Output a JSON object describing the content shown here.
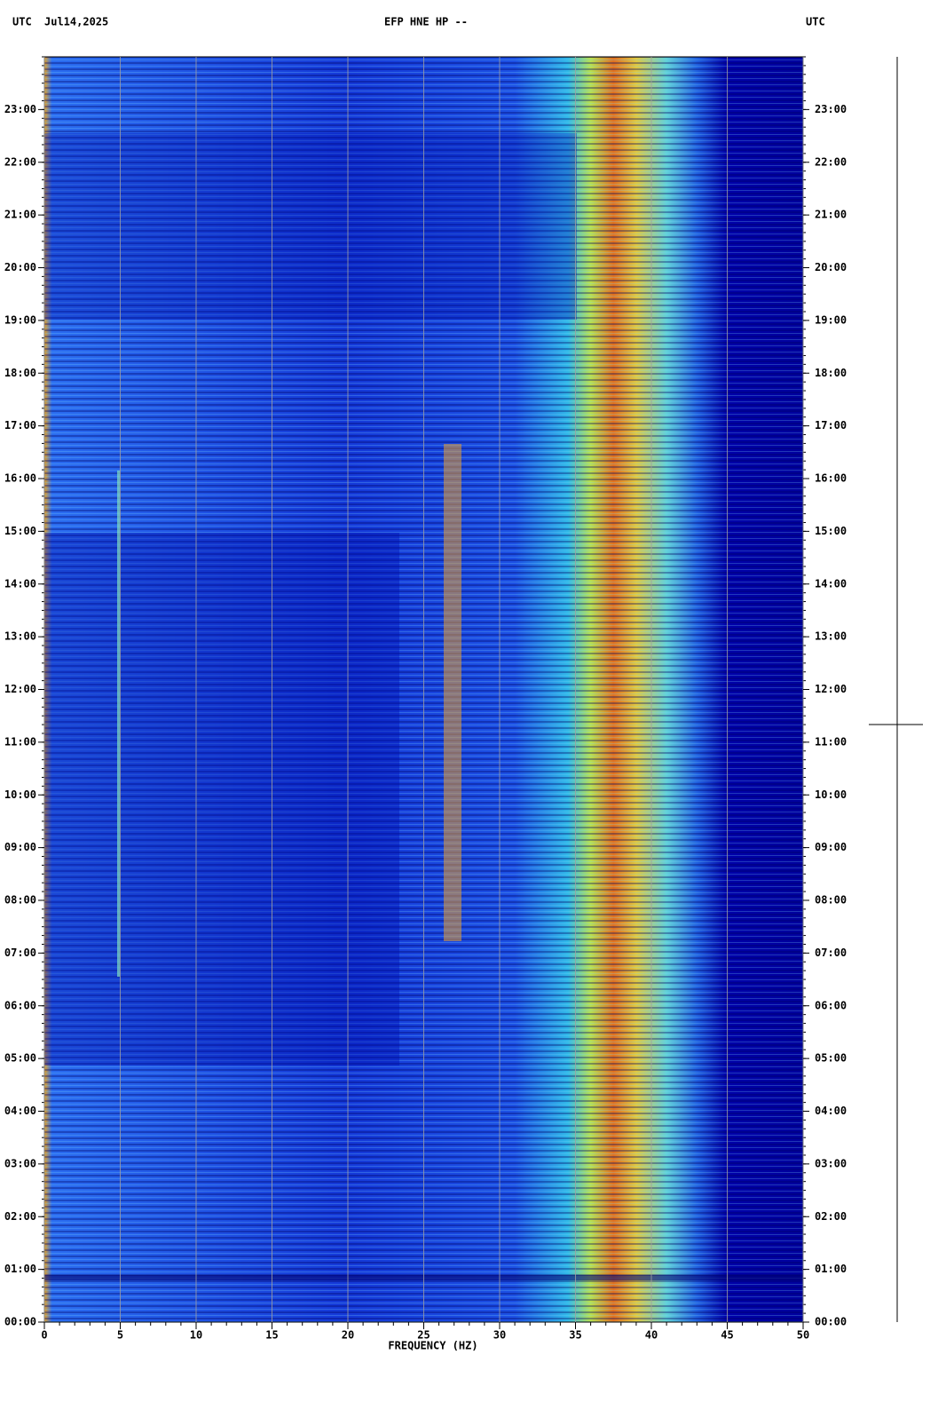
{
  "chart_data": {
    "type": "spectrogram",
    "header_left_label": "UTC",
    "date": "Jul14,2025",
    "title": "EFP HNE HP --",
    "header_right_label": "UTC",
    "xlabel": "FREQUENCY (HZ)",
    "xlim": [
      0,
      50
    ],
    "xticks": [
      0,
      5,
      10,
      15,
      20,
      25,
      30,
      35,
      40,
      45,
      50
    ],
    "ylim": [
      0,
      24
    ],
    "yticks": [
      {
        "value": 0,
        "label": "00:00"
      },
      {
        "value": 1,
        "label": "01:00"
      },
      {
        "value": 2,
        "label": "02:00"
      },
      {
        "value": 3,
        "label": "03:00"
      },
      {
        "value": 4,
        "label": "04:00"
      },
      {
        "value": 5,
        "label": "05:00"
      },
      {
        "value": 6,
        "label": "06:00"
      },
      {
        "value": 7,
        "label": "07:00"
      },
      {
        "value": 8,
        "label": "08:00"
      },
      {
        "value": 9,
        "label": "09:00"
      },
      {
        "value": 10,
        "label": "10:00"
      },
      {
        "value": 11,
        "label": "11:00"
      },
      {
        "value": 12,
        "label": "12:00"
      },
      {
        "value": 13,
        "label": "13:00"
      },
      {
        "value": 14,
        "label": "14:00"
      },
      {
        "value": 15,
        "label": "15:00"
      },
      {
        "value": 16,
        "label": "16:00"
      },
      {
        "value": 17,
        "label": "17:00"
      },
      {
        "value": 18,
        "label": "18:00"
      },
      {
        "value": 19,
        "label": "19:00"
      },
      {
        "value": 20,
        "label": "20:00"
      },
      {
        "value": 21,
        "label": "21:00"
      },
      {
        "value": 22,
        "label": "22:00"
      },
      {
        "value": 23,
        "label": "23:00"
      }
    ],
    "grid": true
  }
}
